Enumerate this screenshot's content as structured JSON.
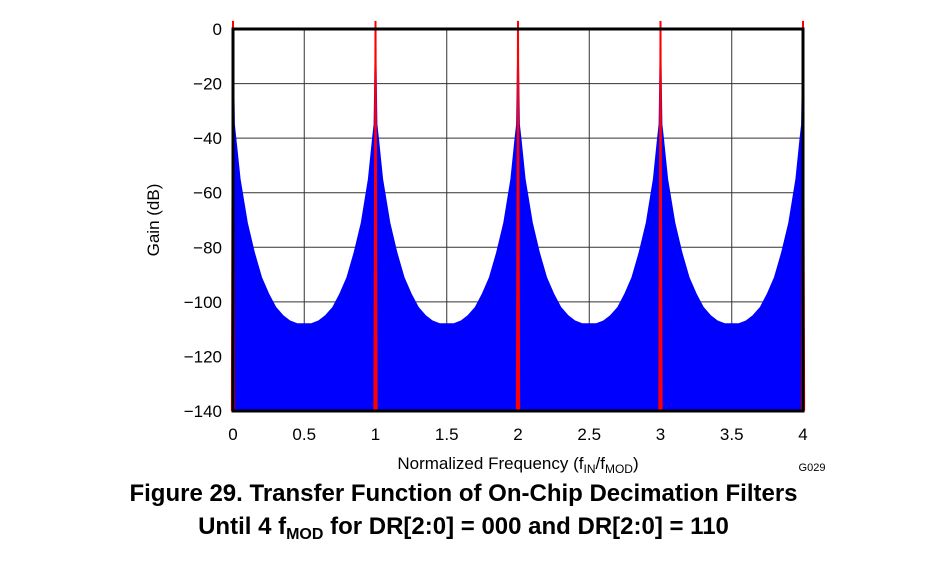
{
  "chart_data": {
    "type": "area",
    "title": "",
    "xlabel_main": "Normalized Frequency (f",
    "xlabel_sub1": "IN",
    "xlabel_mid": "/f",
    "xlabel_sub2": "MOD",
    "xlabel_end": ")",
    "ylabel": "Gain (dB)",
    "xlim": [
      0,
      4
    ],
    "ylim": [
      -140,
      0
    ],
    "grid": true,
    "x_ticks": [
      "0",
      "0.5",
      "1",
      "1.5",
      "2",
      "2.5",
      "3",
      "3.5",
      "4"
    ],
    "y_ticks": [
      "0",
      "−20",
      "−40",
      "−60",
      "−80",
      "−100",
      "−120",
      "−140"
    ],
    "x_tick_values": [
      0,
      0.5,
      1,
      1.5,
      2,
      2.5,
      3,
      3.5,
      4
    ],
    "y_tick_values": [
      0,
      -20,
      -40,
      -60,
      -80,
      -100,
      -120,
      -140
    ],
    "annotation": "G029",
    "series": [
      {
        "color": "#0000ff",
        "fill": "to-bottom",
        "x": [
          0,
          0.01,
          0.02,
          0.05,
          0.1,
          0.15,
          0.2,
          0.25,
          0.3,
          0.35,
          0.4,
          0.45,
          0.5,
          0.55,
          0.6,
          0.65,
          0.7,
          0.75,
          0.8,
          0.85,
          0.9,
          0.95,
          0.98,
          0.99,
          1,
          1.01,
          1.02,
          1.05,
          1.1,
          1.15,
          1.2,
          1.25,
          1.3,
          1.35,
          1.4,
          1.45,
          1.5,
          1.55,
          1.6,
          1.65,
          1.7,
          1.75,
          1.8,
          1.85,
          1.9,
          1.95,
          1.98,
          1.99,
          2,
          2.01,
          2.02,
          2.05,
          2.1,
          2.15,
          2.2,
          2.25,
          2.3,
          2.35,
          2.4,
          2.45,
          2.5,
          2.55,
          2.6,
          2.65,
          2.7,
          2.75,
          2.8,
          2.85,
          2.9,
          2.95,
          2.98,
          2.99,
          3,
          3.01,
          3.02,
          3.05,
          3.1,
          3.15,
          3.2,
          3.25,
          3.3,
          3.35,
          3.4,
          3.45,
          3.5,
          3.55,
          3.6,
          3.65,
          3.7,
          3.75,
          3.8,
          3.85,
          3.9,
          3.95,
          3.98,
          3.99,
          4
        ],
        "y": [
          0,
          -35,
          -40,
          -55,
          -71,
          -82,
          -91,
          -97,
          -102,
          -105,
          -107,
          -108,
          -108,
          -108,
          -107,
          -105,
          -102,
          -97,
          -91,
          -82,
          -71,
          -55,
          -40,
          -35,
          0,
          -35,
          -40,
          -55,
          -71,
          -82,
          -91,
          -97,
          -102,
          -105,
          -107,
          -108,
          -108,
          -108,
          -107,
          -105,
          -102,
          -97,
          -91,
          -82,
          -71,
          -55,
          -40,
          -35,
          0,
          -35,
          -40,
          -55,
          -71,
          -82,
          -91,
          -97,
          -102,
          -105,
          -107,
          -108,
          -108,
          -108,
          -107,
          -105,
          -102,
          -97,
          -91,
          -82,
          -71,
          -55,
          -40,
          -35,
          0,
          -35,
          -40,
          -55,
          -71,
          -82,
          -91,
          -97,
          -102,
          -105,
          -107,
          -108,
          -108,
          -108,
          -107,
          -105,
          -102,
          -97,
          -91,
          -82,
          -71,
          -55,
          -40,
          -35,
          0
        ]
      },
      {
        "color": "#ff0000",
        "fill": "to-bottom",
        "peaks_x": [
          0,
          1,
          2,
          3,
          4
        ],
        "peak_y": 0,
        "halfwidth_at_floor": 0.015
      }
    ]
  },
  "caption": {
    "line1": "Figure 29. Transfer Function of On-Chip Decimation Filters",
    "line2_a": "Until 4 f",
    "line2_sub": "MOD",
    "line2_b": " for DR[2:0] = 000 and DR[2:0] = 110"
  }
}
